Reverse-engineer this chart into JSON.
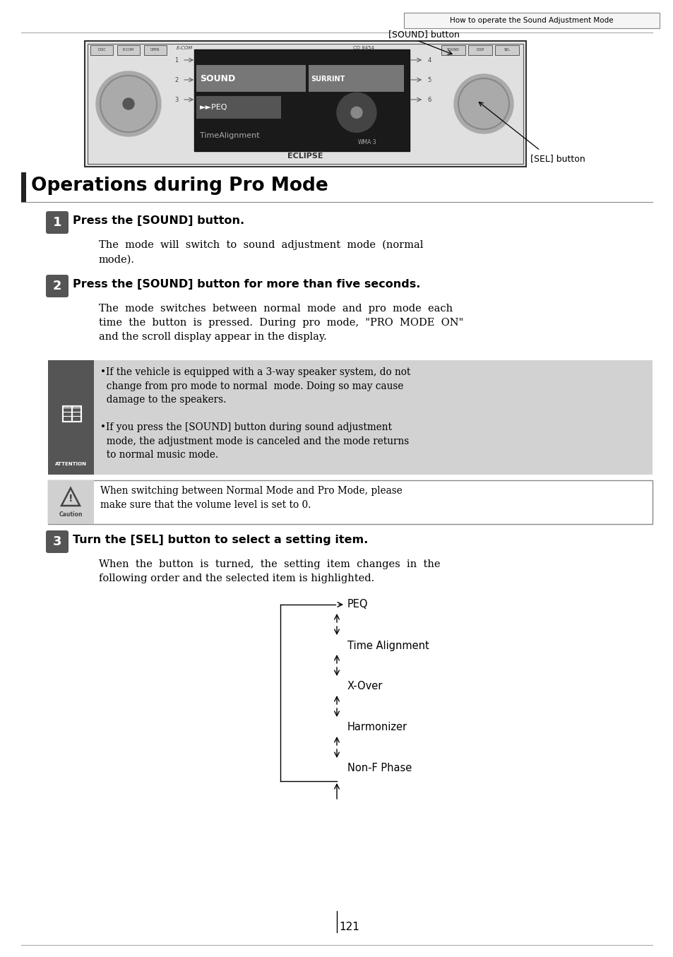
{
  "page_bg": "#ffffff",
  "header_text": "How to operate the Sound Adjustment Mode",
  "section_title": "Operations during Pro Mode",
  "step1_num": "1",
  "step1_heading": "Press the [SOUND] button.",
  "step1_body": "The  mode  will  switch  to  sound  adjustment  mode  (normal\nmode).",
  "step2_num": "2",
  "step2_heading": "Press the [SOUND] button for more than five seconds.",
  "step2_body": "The  mode  switches  between  normal  mode  and  pro  mode  each\ntime  the  button  is  pressed.  During  pro  mode,  \"PRO  MODE  ON\"\nand the scroll display appear in the display.",
  "attention_text1": "•If the vehicle is equipped with a 3-way speaker system, do not\n  change from pro mode to normal  mode. Doing so may cause\n  damage to the speakers.",
  "attention_text2": "•If you press the [SOUND] button during sound adjustment\n  mode, the adjustment mode is canceled and the mode returns\n  to normal music mode.",
  "caution_text": "When switching between Normal Mode and Pro Mode, please\nmake sure that the volume level is set to 0.",
  "step3_num": "3",
  "step3_heading": "Turn the [SEL] button to select a setting item.",
  "step3_body": "When  the  button  is  turned,  the  setting  item  changes  in  the\nfollowing order and the selected item is highlighted.",
  "flow_items": [
    "PEQ",
    "Time Alignment",
    "X-Over",
    "Harmonizer",
    "Non-F Phase"
  ],
  "sound_button_label": "[SOUND] button",
  "sel_button_label": "[SEL] button",
  "page_number": "121",
  "step_bg_color": "#555555",
  "step_text_color": "#ffffff",
  "attention_bg": "#d0d0d0",
  "attention_icon_bg": "#555555",
  "caution_border": "#888888"
}
